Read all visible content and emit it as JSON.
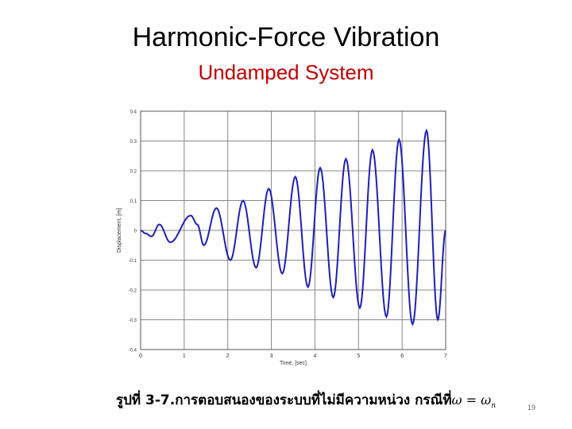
{
  "slide": {
    "title": "Harmonic-Force Vibration",
    "subtitle": "Undamped System",
    "subtitle_color": "#c00000",
    "caption": "รูปที่ 3-7.การตอบสนองของระบบที่ไม่มีความหน่วง กรณีที่",
    "caption_math": "ω = ω",
    "caption_math_sub": "n",
    "page_number": "19"
  },
  "chart_data": {
    "type": "line",
    "title": "",
    "xlabel": "Time, [sec]",
    "ylabel": "Displacement, [m]",
    "xlim": [
      0,
      7
    ],
    "ylim": [
      -0.4,
      0.4
    ],
    "x_ticks": [
      "0",
      "1",
      "2",
      "3",
      "4",
      "5",
      "6",
      "7"
    ],
    "y_ticks": [
      "0.4",
      "0.3",
      "0.2",
      "0.1",
      "0",
      "-0.1",
      "-0.2",
      "-0.3",
      "-0.4"
    ],
    "grid": true,
    "line_color": "#1f1fb4",
    "series": [
      {
        "points": [
          [
            0,
            0
          ],
          [
            0.11,
            -0.01
          ],
          [
            0.25,
            -0.02
          ],
          [
            0.43,
            0.02
          ],
          [
            0.68,
            -0.04
          ],
          [
            1.15,
            0.05
          ],
          [
            1.3,
            0.02
          ],
          [
            1.45,
            -0.05
          ],
          [
            1.74,
            0.075
          ],
          [
            2.06,
            -0.1
          ],
          [
            2.35,
            0.1
          ],
          [
            2.65,
            -0.125
          ],
          [
            2.94,
            0.14
          ],
          [
            3.25,
            -0.145
          ],
          [
            3.55,
            0.18
          ],
          [
            3.84,
            -0.19
          ],
          [
            4.12,
            0.21
          ],
          [
            4.42,
            -0.225
          ],
          [
            4.71,
            0.24
          ],
          [
            5.03,
            -0.26
          ],
          [
            5.32,
            0.27
          ],
          [
            5.64,
            -0.29
          ],
          [
            5.93,
            0.305
          ],
          [
            6.24,
            -0.315
          ],
          [
            6.56,
            0.335
          ],
          [
            6.82,
            -0.3
          ],
          [
            7.0,
            0.0
          ]
        ]
      }
    ]
  }
}
